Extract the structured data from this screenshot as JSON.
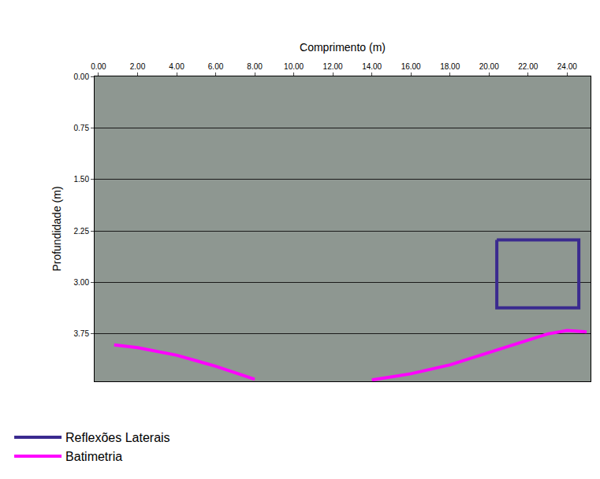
{
  "chart_data": {
    "type": "line",
    "x_label": "Comprimento (m)",
    "y_label": "Profundidade (m)",
    "xlim": [
      -0.2,
      25.2
    ],
    "ylim": [
      4.44,
      0
    ],
    "xticks": [
      {
        "value": 0,
        "label": "0.00"
      },
      {
        "value": 2,
        "label": "2.00"
      },
      {
        "value": 4,
        "label": "4.00"
      },
      {
        "value": 6,
        "label": "6.00"
      },
      {
        "value": 8,
        "label": "8.00"
      },
      {
        "value": 10,
        "label": "10.00"
      },
      {
        "value": 12,
        "label": "12.00"
      },
      {
        "value": 14,
        "label": "14.00"
      },
      {
        "value": 16,
        "label": "16.00"
      },
      {
        "value": 18,
        "label": "18.00"
      },
      {
        "value": 20,
        "label": "20.00"
      },
      {
        "value": 22,
        "label": "22.00"
      },
      {
        "value": 24,
        "label": "24.00"
      }
    ],
    "yticks": [
      {
        "value": 0,
        "label": "0.00"
      },
      {
        "value": 0.75,
        "label": "0.75"
      },
      {
        "value": 1.5,
        "label": "1.50"
      },
      {
        "value": 2.25,
        "label": "2.25"
      },
      {
        "value": 3,
        "label": "3.00"
      },
      {
        "value": 3.75,
        "label": "3.75"
      }
    ],
    "grid": true,
    "legend": "bottom",
    "series": [
      {
        "name": "Reflexões Laterais",
        "color": "#3a2a8f",
        "line_style": "solid",
        "x": [
          20.4,
          24.6,
          24.6,
          20.4,
          20.4
        ],
        "values": [
          2.38,
          2.38,
          3.37,
          3.37,
          2.38
        ]
      },
      {
        "name": "Batimetria",
        "color": "#ff00ff",
        "line_style": "solid",
        "x": [
          0.8,
          2.0,
          4.0,
          6.0,
          8.0,
          11.0,
          14.0,
          16.0,
          18.0,
          20.0,
          22.0,
          23.0,
          24.0,
          25.0
        ],
        "values": [
          3.91,
          3.95,
          4.06,
          4.22,
          4.41,
          null,
          4.42,
          4.33,
          4.2,
          4.02,
          3.84,
          3.75,
          3.7,
          3.72
        ]
      }
    ]
  }
}
